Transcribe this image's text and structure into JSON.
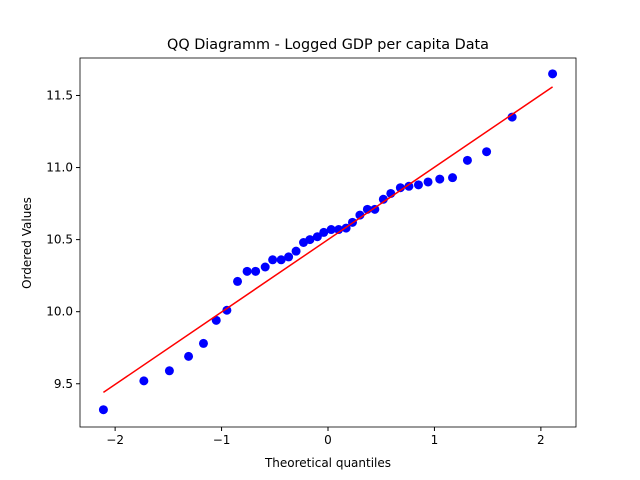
{
  "chart_data": {
    "type": "qq",
    "title": "QQ Diagramm - Logged GDP per capita Data",
    "x_label": "Theoretical quantiles",
    "y_label": "Ordered Values",
    "xlim": [
      -2.33,
      2.33
    ],
    "ylim": [
      9.2,
      11.76
    ],
    "xticks": [
      {
        "value": -2,
        "label": "−2"
      },
      {
        "value": -1,
        "label": "−1"
      },
      0,
      1,
      2
    ],
    "yticks": [
      9.5,
      {
        "value": 10,
        "label": "10.0"
      },
      10.5,
      {
        "value": 11,
        "label": "11.0"
      },
      11.5
    ],
    "points": {
      "color": "#0000ff",
      "x": [
        -2.11,
        -1.73,
        -1.49,
        -1.31,
        -1.17,
        -1.05,
        -0.95,
        -0.85,
        -0.76,
        -0.68,
        -0.59,
        -0.52,
        -0.44,
        -0.37,
        -0.3,
        -0.23,
        -0.17,
        -0.1,
        -0.04,
        0.03,
        0.1,
        0.17,
        0.23,
        0.3,
        0.37,
        0.44,
        0.52,
        0.59,
        0.68,
        0.76,
        0.85,
        0.94,
        1.05,
        1.17,
        1.31,
        1.49,
        1.73,
        2.11
      ],
      "values": [
        9.32,
        9.52,
        9.59,
        9.69,
        9.78,
        9.94,
        10.01,
        10.21,
        10.28,
        10.28,
        10.31,
        10.36,
        10.36,
        10.38,
        10.42,
        10.48,
        10.5,
        10.52,
        10.55,
        10.57,
        10.57,
        10.58,
        10.62,
        10.67,
        10.71,
        10.71,
        10.78,
        10.82,
        10.86,
        10.87,
        10.88,
        10.9,
        10.92,
        10.93,
        11.05,
        11.11,
        11.35,
        11.65
      ]
    },
    "fit_line": {
      "color": "#ff0000",
      "x": [
        -2.11,
        2.11
      ],
      "values": [
        9.44,
        11.56
      ]
    }
  }
}
